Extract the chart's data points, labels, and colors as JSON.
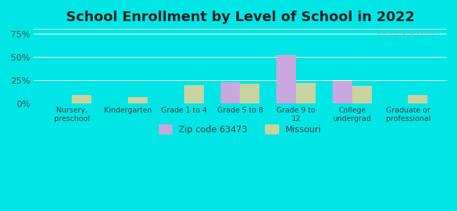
{
  "title": "School Enrollment by Level of School in 2022",
  "categories": [
    "Nursery,\npreschool",
    "Kindergarten",
    "Grade 1 to 4",
    "Grade 5 to 8",
    "Grade 9 to\n12",
    "College\nundergrad",
    "Graduate or\nprofessional"
  ],
  "zip_values": [
    0,
    0,
    0,
    23,
    52,
    24,
    0
  ],
  "mo_values": [
    9,
    7,
    20,
    21,
    22,
    19,
    9
  ],
  "zip_color": "#c9a8e0",
  "mo_color": "#c8d4a0",
  "background_outer": "#00e5e5",
  "background_inner_top": "#e8f5e9",
  "background_inner_bottom": "#f5f5e0",
  "yticks": [
    0,
    25,
    50,
    75
  ],
  "ylim": [
    0,
    80
  ],
  "ylabel_suffix": "%",
  "zip_label": "Zip code 63473",
  "mo_label": "Missouri",
  "title_fontsize": 14,
  "watermark": "City-Data.com"
}
